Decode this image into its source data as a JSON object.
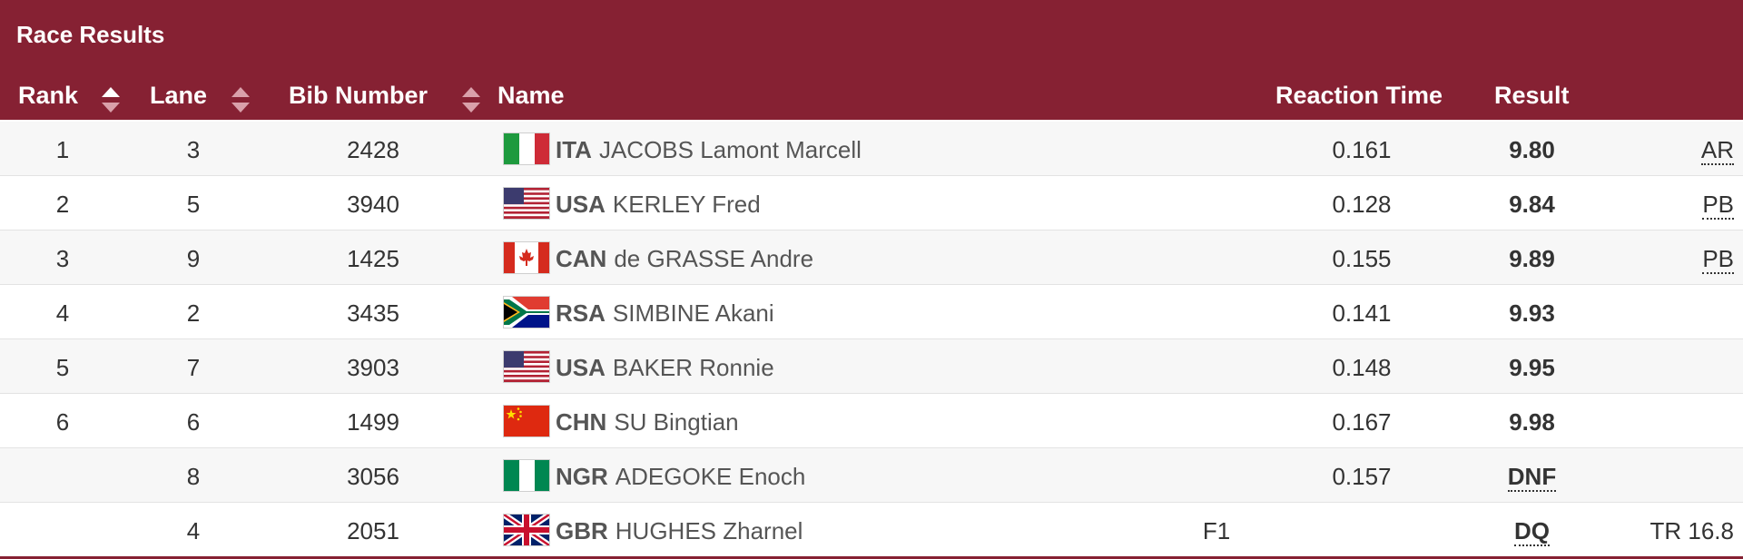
{
  "colors": {
    "brand": "#862133"
  },
  "title": "Race Results",
  "columns": {
    "rank": "Rank",
    "lane": "Lane",
    "bib": "Bib Number",
    "name": "Name",
    "reaction": "Reaction Time",
    "result": "Result"
  },
  "rows": [
    {
      "rank": "1",
      "lane": "3",
      "bib": "2428",
      "flag": "italy-flag-icon",
      "noc": "ITA",
      "name": "JACOBS Lamont Marcell",
      "f1": "",
      "reaction": "0.161",
      "result": "9.80",
      "note": "AR"
    },
    {
      "rank": "2",
      "lane": "5",
      "bib": "3940",
      "flag": "usa-flag-icon",
      "noc": "USA",
      "name": "KERLEY Fred",
      "f1": "",
      "reaction": "0.128",
      "result": "9.84",
      "note": "PB"
    },
    {
      "rank": "3",
      "lane": "9",
      "bib": "1425",
      "flag": "canada-flag-icon",
      "noc": "CAN",
      "name": "de GRASSE Andre",
      "f1": "",
      "reaction": "0.155",
      "result": "9.89",
      "note": "PB"
    },
    {
      "rank": "4",
      "lane": "2",
      "bib": "3435",
      "flag": "south-africa-flag-icon",
      "noc": "RSA",
      "name": "SIMBINE Akani",
      "f1": "",
      "reaction": "0.141",
      "result": "9.93",
      "note": ""
    },
    {
      "rank": "5",
      "lane": "7",
      "bib": "3903",
      "flag": "usa-flag-icon",
      "noc": "USA",
      "name": "BAKER Ronnie",
      "f1": "",
      "reaction": "0.148",
      "result": "9.95",
      "note": ""
    },
    {
      "rank": "6",
      "lane": "6",
      "bib": "1499",
      "flag": "china-flag-icon",
      "noc": "CHN",
      "name": "SU Bingtian",
      "f1": "",
      "reaction": "0.167",
      "result": "9.98",
      "note": ""
    },
    {
      "rank": "",
      "lane": "8",
      "bib": "3056",
      "flag": "nigeria-flag-icon",
      "noc": "NGR",
      "name": "ADEGOKE Enoch",
      "f1": "",
      "reaction": "0.157",
      "result": "DNF",
      "note": ""
    },
    {
      "rank": "",
      "lane": "4",
      "bib": "2051",
      "flag": "uk-flag-icon",
      "noc": "GBR",
      "name": "HUGHES Zharnel",
      "f1": "F1",
      "reaction": "",
      "result": "DQ",
      "note": "TR 16.8"
    }
  ]
}
